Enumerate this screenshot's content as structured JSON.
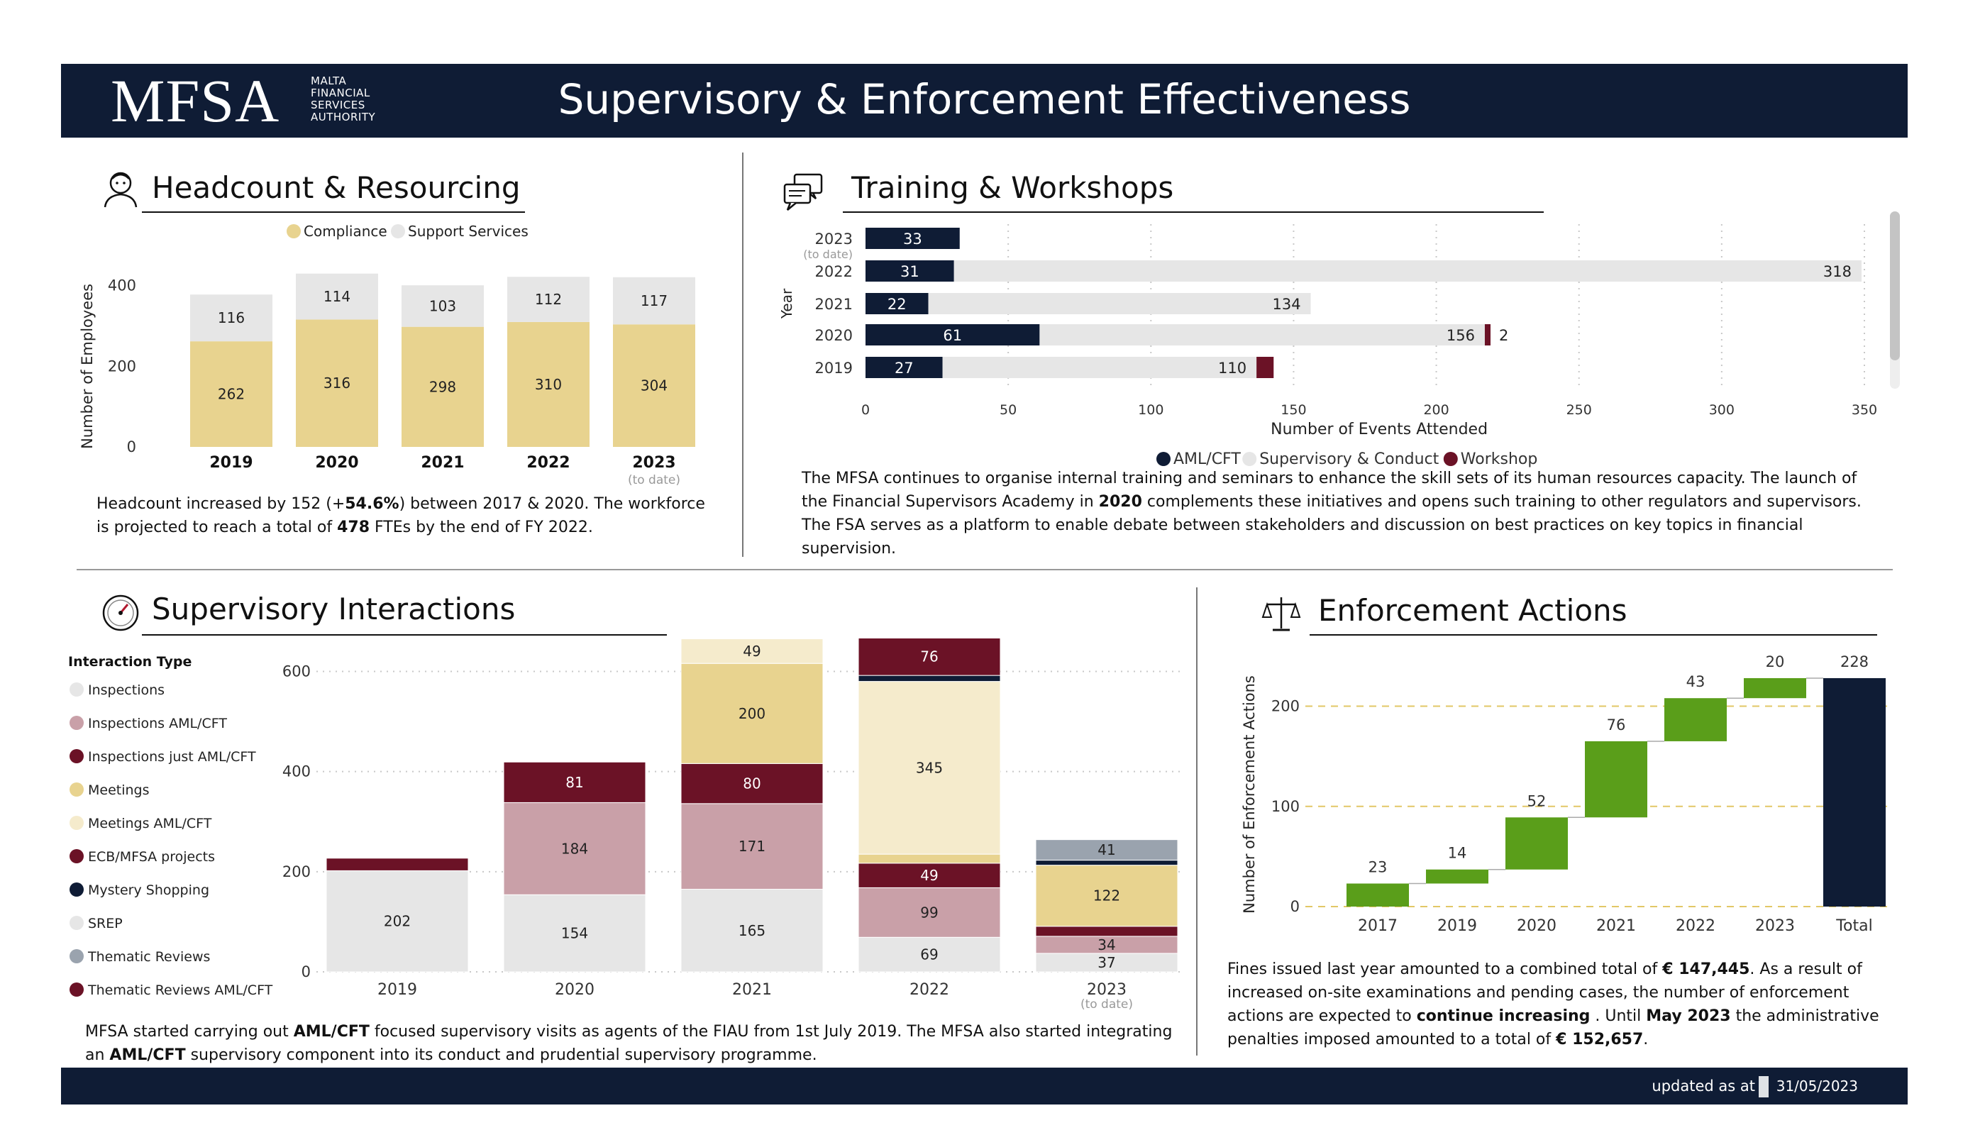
{
  "header": {
    "logo_word": "MFSA",
    "logo_sub": [
      "MALTA",
      "FINANCIAL",
      "SERVICES",
      "AUTHORITY"
    ],
    "title": "Supervisory & Enforcement Effectiveness"
  },
  "footer": {
    "updated_label": "updated as at",
    "date": "31/05/2023"
  },
  "colors": {
    "navy": "#0f1c35",
    "compliance": "#e8d38f",
    "support": "#e6e6e6",
    "maroon": "#6b1226",
    "pink": "#c9a0a8",
    "cream": "#f5ebcc",
    "grey_blue": "#9aa3ae",
    "green": "#5a9e1a"
  },
  "sections": {
    "headcount": {
      "title": "Headcount & Resourcing",
      "icon": "person-icon"
    },
    "training": {
      "title": "Training & Workshops",
      "icon": "chat-bubbles-icon"
    },
    "interactions": {
      "title": "Supervisory Interactions",
      "icon": "gauge-icon"
    },
    "enforcement": {
      "title": "Enforcement Actions",
      "icon": "scales-icon"
    }
  },
  "chart_data": [
    {
      "id": "headcount",
      "type": "bar",
      "stacked": true,
      "categories": [
        "2019",
        "2020",
        "2021",
        "2022",
        "2023"
      ],
      "category_notes": {
        "2023": "(to date)"
      },
      "series": [
        {
          "name": "Compliance",
          "values": [
            262,
            316,
            298,
            310,
            304
          ]
        },
        {
          "name": "Support Services",
          "values": [
            116,
            114,
            103,
            112,
            117
          ]
        }
      ],
      "ylabel": "Number of Employees",
      "yticks": [
        0,
        200,
        400
      ],
      "ylim": [
        0,
        440
      ],
      "legend": "top"
    },
    {
      "id": "training",
      "type": "bar",
      "orientation": "horizontal",
      "stacked": true,
      "categories": [
        "2023",
        "2022",
        "2021",
        "2020",
        "2019"
      ],
      "category_notes": {
        "2023": "(to date)"
      },
      "series": [
        {
          "name": "AML/CFT",
          "values": [
            33,
            31,
            22,
            61,
            27
          ]
        },
        {
          "name": "Supervisory & Conduct",
          "values": [
            0,
            318,
            134,
            156,
            110
          ]
        },
        {
          "name": "Workshop",
          "values": [
            0,
            0,
            0,
            2,
            6
          ]
        }
      ],
      "labels": {
        "AML/CFT": [
          "33",
          "31",
          "22",
          "61",
          "27"
        ],
        "Supervisory & Conduct": [
          "",
          "318",
          "134",
          "156",
          "110"
        ],
        "Workshop": [
          "",
          "",
          "",
          "2",
          ""
        ]
      },
      "xlabel": "Number of Events Attended",
      "ylabel": "Year",
      "xticks": [
        0,
        50,
        100,
        150,
        200,
        250,
        300,
        350
      ],
      "xlim": [
        0,
        350
      ],
      "legend": "bottom"
    },
    {
      "id": "interactions",
      "type": "bar",
      "stacked": true,
      "legend_title": "Interaction Type",
      "categories": [
        "2019",
        "2020",
        "2021",
        "2022",
        "2023"
      ],
      "category_notes": {
        "2023": "(to date)"
      },
      "series": [
        {
          "name": "Inspections",
          "values": [
            202,
            154,
            165,
            69,
            37
          ]
        },
        {
          "name": "Inspections  AML/CFT",
          "values": [
            0,
            184,
            171,
            99,
            34
          ]
        },
        {
          "name": "Inspections just AML/CFT",
          "values": [
            25,
            81,
            80,
            49,
            20
          ]
        },
        {
          "name": "Meetings",
          "values": [
            0,
            0,
            200,
            18,
            122
          ]
        },
        {
          "name": "Meetings  AML/CFT",
          "values": [
            0,
            0,
            49,
            345,
            0
          ]
        },
        {
          "name": "ECB/MFSA projects",
          "values": [
            0,
            0,
            0,
            0,
            0
          ]
        },
        {
          "name": "Mystery Shopping",
          "values": [
            0,
            0,
            0,
            12,
            10
          ]
        },
        {
          "name": "SREP",
          "values": [
            0,
            0,
            0,
            0,
            0
          ]
        },
        {
          "name": "Thematic Reviews",
          "values": [
            0,
            0,
            0,
            0,
            41
          ]
        },
        {
          "name": "Thematic Reviews   AML/CFT",
          "values": [
            0,
            0,
            0,
            76,
            0
          ]
        }
      ],
      "yticks": [
        0,
        200,
        400,
        600
      ],
      "ylim": [
        0,
        680
      ],
      "legend": "left"
    },
    {
      "id": "enforcement",
      "type": "bar",
      "subtype": "waterfall",
      "categories": [
        "2017",
        "2019",
        "2020",
        "2021",
        "2022",
        "2023",
        "Total"
      ],
      "values": [
        23,
        14,
        52,
        76,
        43,
        20,
        228
      ],
      "ylabel": "Number of Enforcement Actions",
      "yticks": [
        0,
        100,
        200
      ],
      "ylim": [
        0,
        240
      ]
    }
  ],
  "text": {
    "headcount_para": [
      "Headcount increased by 152 (+",
      "54.6%",
      ") between 2017 & 2020. The workforce is projected to reach a total of ",
      "478",
      " FTEs by the end of FY 2022."
    ],
    "training_para": [
      "The MFSA continues to organise internal training and seminars to enhance the skill sets of its human resources capacity. The launch of the Financial Supervisors Academy in ",
      "2020",
      " complements these initiatives and opens such training to other regulators and supervisors. The FSA serves as a platform to enable debate between stakeholders and discussion on best practices on key topics in financial supervision."
    ],
    "interactions_para": [
      "MFSA started carrying out ",
      "AML/CFT",
      " focused supervisory visits as agents of the FIAU from 1st July 2019. The MFSA also started integrating an ",
      "AML/CFT",
      " supervisory component into its conduct and prudential supervisory programme."
    ],
    "enforcement_para": [
      "Fines issued last year amounted to a combined total of ",
      "€ 147,445",
      ". As a result of increased on-site examinations and pending cases, the number of enforcement actions are expected to ",
      "continue increasing",
      " . Until ",
      "May 2023",
      " the administrative penalties imposed amounted to a total of ",
      "€ 152,657",
      "."
    ]
  }
}
